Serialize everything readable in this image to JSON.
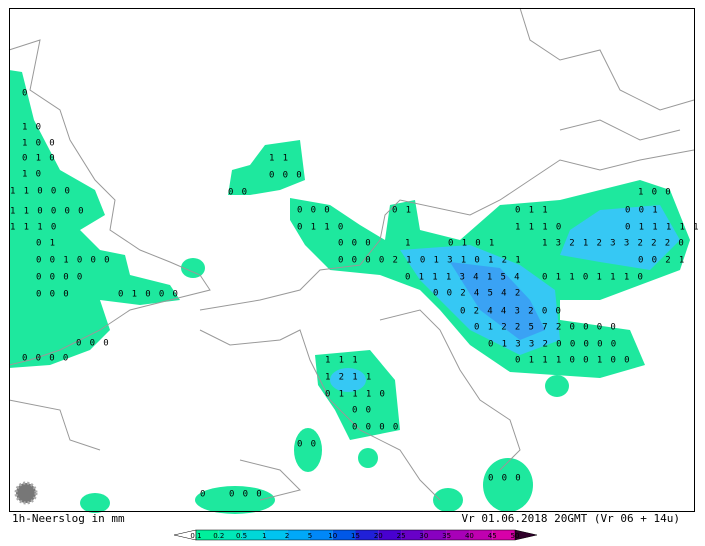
{
  "map": {
    "title": "1h-Neerslog in mm",
    "valid": "Vr 01.06.2018 20GMT (Vr 06 + 14u)",
    "legend": {
      "labels": [
        "0.1",
        "0.2",
        "0.5",
        "1",
        "2",
        "5",
        "10",
        "15",
        "20",
        "25",
        "30",
        "35",
        "40",
        "45",
        "50"
      ],
      "colors": [
        "#00f09c",
        "#00e8b8",
        "#00d8d8",
        "#00c4f0",
        "#00a8f8",
        "#0088f8",
        "#0058e8",
        "#2020d8",
        "#4800d0",
        "#6800c8",
        "#8800c0",
        "#a800b8",
        "#c000b0",
        "#d800a8"
      ],
      "under_color": "#ffffff",
      "over_color": "#30002a"
    },
    "grid_labels": [
      "0",
      "1 0",
      "1 0 0",
      "0 1 0",
      "1 0",
      "1 1 0 0 0",
      "1 1 0 0 0 0",
      "1 1 1 0",
      "0 1",
      "0 0 1 0 0 0",
      "0 0 0 0",
      "0 0 0",
      "0 1 0 0 0",
      "0 0 0 0",
      "0 0 0",
      "1 1",
      "0 0 0",
      "0 0",
      "0 0 0",
      "0 1 1 0",
      "0 0 0",
      "0 0 0 0 2 1 0 1 3 1 0 1 2 1",
      "0 1",
      "1",
      "0 1 0 1",
      "0 1 1 1 3 4 1 5 4",
      "0 0 2 4 5 4 2",
      "0 2 4 4 3 2 0 0",
      "0 1 2 2 5 7 2 0 0 0 0",
      "0 1 3 3 2 0 0 0 0 0",
      "0 1 1 1 0 0 1 0 0",
      "1 3 2 1 2 3 3 2 2 2 0",
      "0 1 1 0 1 1 1 0",
      "0 1 1 1 1 1",
      "0 0 1",
      "1 0 0",
      "0 0 2 1",
      "0 1 1",
      "1 1 1 0",
      "1 1 1",
      "1 2 1 1",
      "0 1 1 1 0",
      "0 0",
      "0 0 0 0",
      "0 0",
      "0 0 0",
      "0 0 0",
      "0"
    ]
  }
}
